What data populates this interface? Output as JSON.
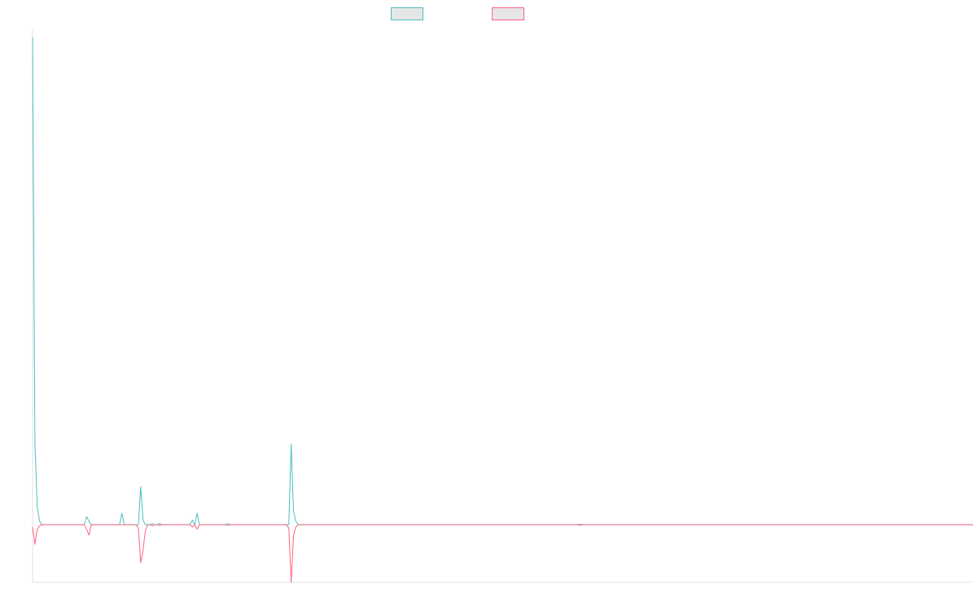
{
  "chart_data": {
    "type": "line",
    "grid": false,
    "legend_position": "top",
    "x_count": 401,
    "ylim": [
      -5,
      43
    ],
    "series": [
      {
        "name": "",
        "color": "#4bc0c0",
        "values_sparse": {
          "0": 42.3,
          "1": 7.0,
          "2": 1.5,
          "3": 0.3,
          "23": 0.7,
          "24": 0.3,
          "38": 1.0,
          "46": 3.3,
          "47": 0.4,
          "51": 0.1,
          "54": 0.1,
          "68": 0.4,
          "70": 1.0,
          "83": 0.1,
          "110": 7.0,
          "111": 1.2,
          "112": 0.3,
          "233": 0.05
        }
      },
      {
        "name": "",
        "color": "#ff6384",
        "values_sparse": {
          "0": -0.2,
          "1": -1.7,
          "2": -0.4,
          "3": -0.1,
          "23": -0.4,
          "24": -0.9,
          "45": -0.3,
          "46": -3.3,
          "47": -2.2,
          "48": -0.5,
          "51": -0.1,
          "54": -0.05,
          "68": -0.2,
          "70": -0.4,
          "83": -0.05,
          "109": -0.3,
          "110": -5.0,
          "111": -0.9,
          "112": -0.2,
          "233": -0.05
        }
      }
    ]
  }
}
